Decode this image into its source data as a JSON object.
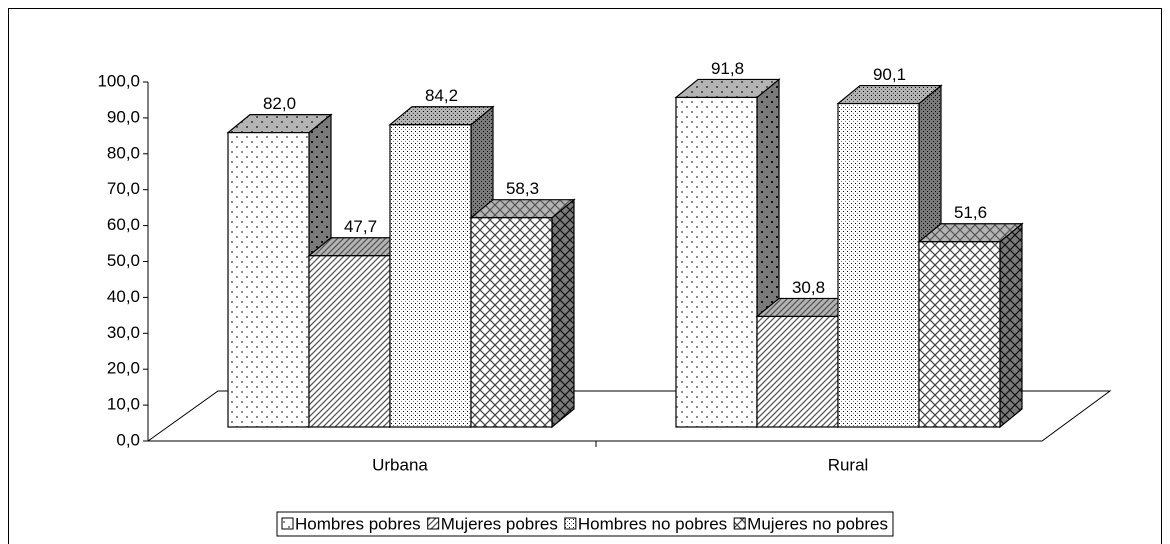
{
  "chart_data": {
    "type": "bar3d",
    "categories": [
      "Urbana",
      "Rural"
    ],
    "series": [
      {
        "name": "Hombres pobres",
        "color": "#8c8c8c",
        "pattern": "dots",
        "values": [
          82.0,
          91.8
        ],
        "value_labels": [
          "82,0",
          "91,8"
        ]
      },
      {
        "name": "Mujeres pobres",
        "color": "#555555",
        "pattern": "hatch",
        "values": [
          47.7,
          30.8
        ],
        "value_labels": [
          "47,7",
          "30,8"
        ]
      },
      {
        "name": "Hombres no pobres",
        "color": "#777777",
        "pattern": "finedots",
        "values": [
          84.2,
          90.1
        ],
        "value_labels": [
          "84,2",
          "90,1"
        ]
      },
      {
        "name": "Mujeres no pobres",
        "color": "#444444",
        "pattern": "cross",
        "values": [
          58.3,
          51.6
        ],
        "value_labels": [
          "58,3",
          "51,6"
        ]
      }
    ],
    "ylim": [
      0,
      100
    ],
    "yticks": [
      {
        "value": 0,
        "label": "0,0"
      },
      {
        "value": 10,
        "label": "10,0"
      },
      {
        "value": 20,
        "label": "20,0"
      },
      {
        "value": 30,
        "label": "30,0"
      },
      {
        "value": 40,
        "label": "40,0"
      },
      {
        "value": 50,
        "label": "50,0"
      },
      {
        "value": 60,
        "label": "60,0"
      },
      {
        "value": 70,
        "label": "70,0"
      },
      {
        "value": 80,
        "label": "80,0"
      },
      {
        "value": 90,
        "label": "90,0"
      },
      {
        "value": 100,
        "label": "100,0"
      }
    ],
    "legend": "bottom"
  }
}
